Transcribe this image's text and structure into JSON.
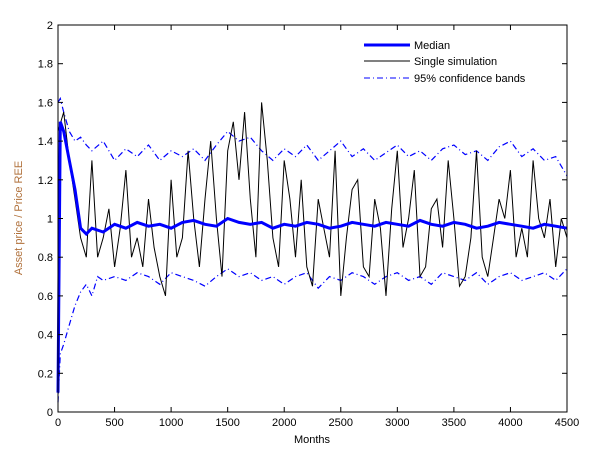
{
  "chart_data": {
    "type": "line",
    "title": "",
    "xlabel": "Months",
    "ylabel": "Asset price / Price REE",
    "xlim": [
      0,
      4500
    ],
    "ylim": [
      0,
      2
    ],
    "xticks": [
      0,
      500,
      1000,
      1500,
      2000,
      2500,
      3000,
      3500,
      4000,
      4500
    ],
    "yticks": [
      0,
      0.2,
      0.4,
      0.6,
      0.8,
      1,
      1.2,
      1.4,
      1.6,
      1.8,
      2
    ],
    "ytick_labels": [
      "0",
      "0.2",
      "0.4",
      "0.6",
      "0.8",
      "1",
      "1.2",
      "1.4",
      "1.6",
      "1.8",
      "2"
    ],
    "grid": false,
    "legend_position": "top-right",
    "colors": {
      "median": "#0000ff",
      "single": "#000000",
      "bands": "#0000ff"
    },
    "series": [
      {
        "name": "Median",
        "style": "solid-thick",
        "x": [
          0,
          20,
          50,
          100,
          150,
          200,
          250,
          300,
          400,
          500,
          600,
          700,
          800,
          900,
          1000,
          1100,
          1200,
          1300,
          1400,
          1500,
          1600,
          1700,
          1800,
          1900,
          2000,
          2100,
          2200,
          2300,
          2400,
          2500,
          2600,
          2700,
          2800,
          2900,
          3000,
          3100,
          3200,
          3300,
          3400,
          3500,
          3600,
          3700,
          3800,
          3900,
          4000,
          4100,
          4200,
          4300,
          4400,
          4500
        ],
        "y": [
          0.1,
          1.5,
          1.45,
          1.3,
          1.15,
          0.95,
          0.92,
          0.95,
          0.93,
          0.97,
          0.95,
          0.98,
          0.96,
          0.97,
          0.95,
          0.98,
          0.99,
          0.97,
          0.96,
          1.0,
          0.98,
          0.97,
          0.98,
          0.95,
          0.97,
          0.96,
          0.98,
          0.97,
          0.95,
          0.96,
          0.98,
          0.97,
          0.96,
          0.98,
          0.97,
          0.96,
          0.99,
          0.97,
          0.96,
          0.98,
          0.97,
          0.95,
          0.96,
          0.98,
          0.97,
          0.96,
          0.95,
          0.97,
          0.96,
          0.95
        ]
      },
      {
        "name": "Single simulation",
        "style": "solid-thin",
        "x": [
          0,
          50,
          100,
          150,
          200,
          250,
          300,
          350,
          400,
          450,
          500,
          550,
          600,
          650,
          700,
          750,
          800,
          850,
          900,
          950,
          1000,
          1050,
          1100,
          1150,
          1200,
          1250,
          1300,
          1350,
          1400,
          1450,
          1500,
          1550,
          1600,
          1650,
          1700,
          1750,
          1800,
          1850,
          1900,
          1950,
          2000,
          2050,
          2100,
          2150,
          2200,
          2250,
          2300,
          2350,
          2400,
          2450,
          2500,
          2550,
          2600,
          2650,
          2700,
          2750,
          2800,
          2850,
          2900,
          2950,
          3000,
          3050,
          3100,
          3150,
          3200,
          3250,
          3300,
          3350,
          3400,
          3450,
          3500,
          3550,
          3600,
          3650,
          3700,
          3750,
          3800,
          3850,
          3900,
          3950,
          4000,
          4050,
          4100,
          4150,
          4200,
          4250,
          4300,
          4350,
          4400,
          4450,
          4500
        ],
        "y": [
          1.45,
          1.55,
          1.3,
          1.1,
          0.9,
          0.8,
          1.3,
          0.8,
          0.9,
          1.05,
          0.75,
          0.95,
          1.25,
          0.8,
          0.9,
          0.75,
          1.1,
          0.85,
          0.7,
          0.6,
          1.2,
          0.8,
          0.9,
          1.35,
          1.0,
          0.75,
          1.1,
          1.4,
          1.0,
          0.7,
          1.35,
          1.5,
          1.2,
          1.55,
          1.1,
          0.8,
          1.6,
          1.3,
          0.9,
          0.75,
          1.3,
          1.1,
          0.8,
          1.2,
          0.75,
          0.65,
          1.1,
          0.95,
          0.8,
          1.35,
          0.6,
          0.9,
          1.15,
          1.2,
          0.75,
          0.7,
          1.1,
          0.95,
          0.6,
          1.05,
          1.35,
          0.85,
          1.0,
          1.25,
          0.7,
          0.75,
          1.05,
          1.1,
          0.85,
          1.3,
          1.0,
          0.65,
          0.7,
          0.9,
          1.35,
          0.8,
          0.7,
          0.9,
          1.1,
          1.0,
          1.25,
          0.8,
          0.95,
          0.8,
          1.3,
          1.0,
          0.9,
          1.1,
          0.75,
          1.0,
          0.9
        ]
      },
      {
        "name": "95% confidence bands",
        "style": "dash-dot",
        "x": [
          0,
          20,
          50,
          100,
          150,
          200,
          250,
          300,
          400,
          500,
          600,
          700,
          800,
          900,
          1000,
          1100,
          1200,
          1300,
          1400,
          1500,
          1600,
          1700,
          1800,
          1900,
          2000,
          2100,
          2200,
          2300,
          2400,
          2500,
          2600,
          2700,
          2800,
          2900,
          3000,
          3100,
          3200,
          3300,
          3400,
          3500,
          3600,
          3700,
          3800,
          3900,
          4000,
          4100,
          4200,
          4300,
          4400,
          4500
        ],
        "y": [
          1.6,
          1.62,
          1.55,
          1.45,
          1.4,
          1.42,
          1.38,
          1.35,
          1.4,
          1.3,
          1.36,
          1.32,
          1.38,
          1.3,
          1.35,
          1.32,
          1.36,
          1.3,
          1.38,
          1.45,
          1.4,
          1.42,
          1.35,
          1.3,
          1.36,
          1.32,
          1.38,
          1.3,
          1.35,
          1.4,
          1.32,
          1.36,
          1.3,
          1.34,
          1.38,
          1.32,
          1.35,
          1.3,
          1.36,
          1.38,
          1.33,
          1.35,
          1.3,
          1.37,
          1.4,
          1.32,
          1.36,
          1.3,
          1.32,
          1.22
        ]
      },
      {
        "name": "",
        "style": "dash-dot",
        "x": [
          0,
          20,
          50,
          100,
          150,
          200,
          250,
          300,
          350,
          400,
          500,
          600,
          700,
          800,
          900,
          1000,
          1100,
          1200,
          1300,
          1400,
          1500,
          1600,
          1700,
          1800,
          1900,
          2000,
          2100,
          2200,
          2300,
          2400,
          2500,
          2600,
          2700,
          2800,
          2900,
          3000,
          3100,
          3200,
          3300,
          3400,
          3500,
          3600,
          3700,
          3800,
          3900,
          4000,
          4100,
          4200,
          4300,
          4400,
          4500
        ],
        "y": [
          0.05,
          0.3,
          0.35,
          0.45,
          0.55,
          0.62,
          0.66,
          0.6,
          0.7,
          0.68,
          0.7,
          0.68,
          0.72,
          0.7,
          0.66,
          0.72,
          0.7,
          0.68,
          0.65,
          0.7,
          0.74,
          0.7,
          0.72,
          0.68,
          0.7,
          0.66,
          0.7,
          0.72,
          0.64,
          0.7,
          0.68,
          0.72,
          0.7,
          0.66,
          0.7,
          0.72,
          0.68,
          0.7,
          0.66,
          0.72,
          0.7,
          0.68,
          0.72,
          0.66,
          0.7,
          0.72,
          0.68,
          0.7,
          0.72,
          0.68,
          0.74
        ]
      }
    ],
    "legend": [
      "Median",
      "Single simulation",
      "95% confidence bands"
    ]
  }
}
